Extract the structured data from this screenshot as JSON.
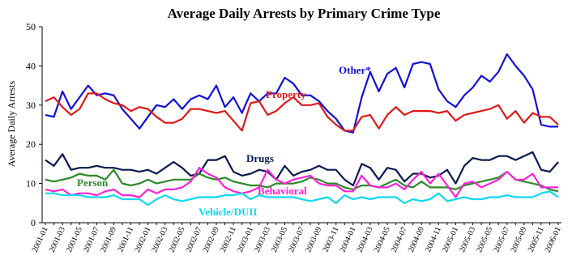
{
  "chart_data": {
    "type": "line",
    "title": "Average Daily Arrests by Primary Crime Type",
    "ylabel": "Average Daily Arrests",
    "xlabel": "",
    "ylim": [
      0,
      50
    ],
    "y_ticks": [
      "0",
      "10",
      "20",
      "30",
      "40",
      "50"
    ],
    "grid": false,
    "legend": "inline labels",
    "x_tick_labels": [
      "2001-01",
      "2001-03",
      "2001-05",
      "2001-07",
      "2001-09",
      "2001-11",
      "2002-01",
      "2002-03",
      "2002-05",
      "2002-07",
      "2002-09",
      "2002-11",
      "2003-01",
      "2003-03",
      "2003-05",
      "2003-07",
      "2003-09",
      "2003-11",
      "2004-01",
      "2004-03",
      "2004-05",
      "2004-07",
      "2004-09",
      "2004-11",
      "2005-01",
      "2005-03",
      "2005-05",
      "2005-07",
      "2005-09",
      "2005-11",
      "2006-01"
    ],
    "series": [
      {
        "name": "Other*",
        "color": "#1010d8",
        "values": [
          27.5,
          27,
          33.5,
          29,
          32,
          35,
          32.5,
          33,
          32.5,
          29,
          26.5,
          24,
          27,
          30,
          29.5,
          31.5,
          29,
          31.5,
          32.5,
          31.5,
          35,
          29.5,
          32,
          28,
          33,
          31,
          33,
          33,
          37,
          35.5,
          32.5,
          32.5,
          31,
          28.5,
          26.5,
          23.5,
          23,
          32,
          38.5,
          33.5,
          38,
          39.5,
          34.5,
          40.5,
          41,
          40.5,
          34,
          31,
          29.5,
          32.5,
          34.5,
          37.5,
          36,
          38.5,
          43,
          40,
          37.5,
          34,
          25,
          24.5,
          24.5
        ]
      },
      {
        "name": "Property",
        "color": "#e01818",
        "values": [
          31,
          32,
          29.5,
          27.5,
          29,
          33,
          33,
          31.5,
          30.5,
          30,
          28.5,
          29.5,
          29,
          27,
          25.5,
          25.5,
          26.5,
          29,
          29,
          28.5,
          28,
          28.5,
          26,
          23.5,
          30.5,
          31,
          27.5,
          28.5,
          30.5,
          32,
          30,
          30,
          30.5,
          27,
          25,
          23.5,
          23.5,
          27,
          27.5,
          24,
          27.5,
          29.5,
          27.5,
          28.5,
          28.5,
          28.5,
          28,
          28.5,
          26,
          27.5,
          28,
          28.5,
          29,
          30,
          26.5,
          28.5,
          25.5,
          28,
          27,
          27,
          25
        ]
      },
      {
        "name": "Drugs",
        "color": "#0a1a50",
        "values": [
          16,
          14.5,
          17.5,
          13.5,
          14,
          14,
          14.5,
          14,
          14,
          13.5,
          13.5,
          13,
          13.5,
          12.5,
          14,
          15.5,
          14,
          12,
          12.5,
          16,
          16,
          17,
          13,
          12,
          12.5,
          13.5,
          13,
          11,
          14.5,
          12,
          13,
          13.5,
          14.5,
          13.5,
          13.5,
          11,
          9.5,
          15,
          14,
          11,
          14,
          13.5,
          10.5,
          12.5,
          12.5,
          11.5,
          12,
          13.5,
          10,
          14.5,
          16.5,
          16,
          16,
          17,
          17,
          16,
          17,
          18,
          13.5,
          13,
          15.5
        ]
      },
      {
        "name": "Person",
        "color": "#2a8a2a",
        "values": [
          11,
          10.5,
          11,
          11.5,
          12.5,
          12,
          12,
          11,
          13.5,
          10,
          9.5,
          10,
          11,
          10,
          10.5,
          11,
          11,
          11,
          12.5,
          11.5,
          11,
          11.5,
          10.5,
          10,
          9.5,
          9.5,
          9,
          10,
          10,
          10,
          10.5,
          11.5,
          11,
          10,
          10,
          9,
          8.5,
          9.5,
          9.5,
          9,
          10,
          11,
          9.5,
          9,
          10.5,
          9,
          9,
          9,
          8.5,
          9.5,
          10,
          10.5,
          11,
          11.5,
          13,
          11,
          10.5,
          10,
          9.5,
          8.5,
          8
        ]
      },
      {
        "name": "Behavioral",
        "color": "#ff20d8",
        "values": [
          8.5,
          8,
          8.5,
          7,
          7.5,
          7.5,
          7,
          8,
          8.5,
          7,
          7,
          6.5,
          8.5,
          7.5,
          8.5,
          8.5,
          9,
          10.5,
          14,
          12.5,
          11.5,
          9,
          8,
          7.5,
          8,
          9,
          13.5,
          11,
          10,
          11,
          11.5,
          12,
          10,
          9.5,
          9.5,
          8,
          8,
          12,
          9.5,
          9,
          9,
          10,
          8.5,
          11,
          13,
          10,
          12.5,
          9.5,
          6.5,
          10,
          10.5,
          9,
          10,
          11,
          13,
          11,
          11,
          12.5,
          9,
          9,
          9
        ]
      },
      {
        "name": "Vehicle/DUII",
        "color": "#10d8f0",
        "values": [
          7.5,
          7.5,
          7,
          7,
          7,
          6.5,
          6.5,
          6.5,
          7,
          6,
          6,
          6,
          4.5,
          6,
          7,
          6,
          5.5,
          6,
          6.5,
          6.5,
          6.5,
          7,
          7,
          7.5,
          6,
          7,
          6.5,
          6.5,
          6.5,
          6.5,
          6,
          5.5,
          6,
          6.5,
          5,
          7,
          6,
          6.5,
          6,
          6.5,
          6.5,
          6.5,
          5,
          6,
          5.5,
          6,
          7.5,
          5.5,
          6,
          6.5,
          6,
          6,
          6.5,
          6.5,
          7,
          6.5,
          6.5,
          6.5,
          7.5,
          8,
          6.5
        ]
      }
    ]
  },
  "annotations": {
    "other": "Other*",
    "property": "Property",
    "drugs": "Drugs",
    "person": "Person",
    "behavioral": "Behavioral",
    "vehicle": "Vehicle/DUII"
  }
}
